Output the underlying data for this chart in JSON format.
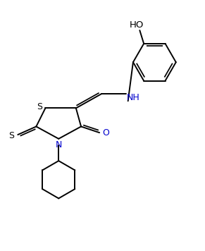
{
  "bg_color": "#ffffff",
  "line_color": "#000000",
  "text_color": "#000000",
  "label_color_N": "#0000cd",
  "label_color_O": "#0000cd",
  "label_color_S": "#000000",
  "figsize": [
    2.91,
    3.56
  ],
  "dpi": 100,
  "ring_s_label": "S",
  "exo_s_label": "S",
  "n_label": "N",
  "o_label": "O",
  "nh_label": "NH",
  "ho_label": "HO"
}
